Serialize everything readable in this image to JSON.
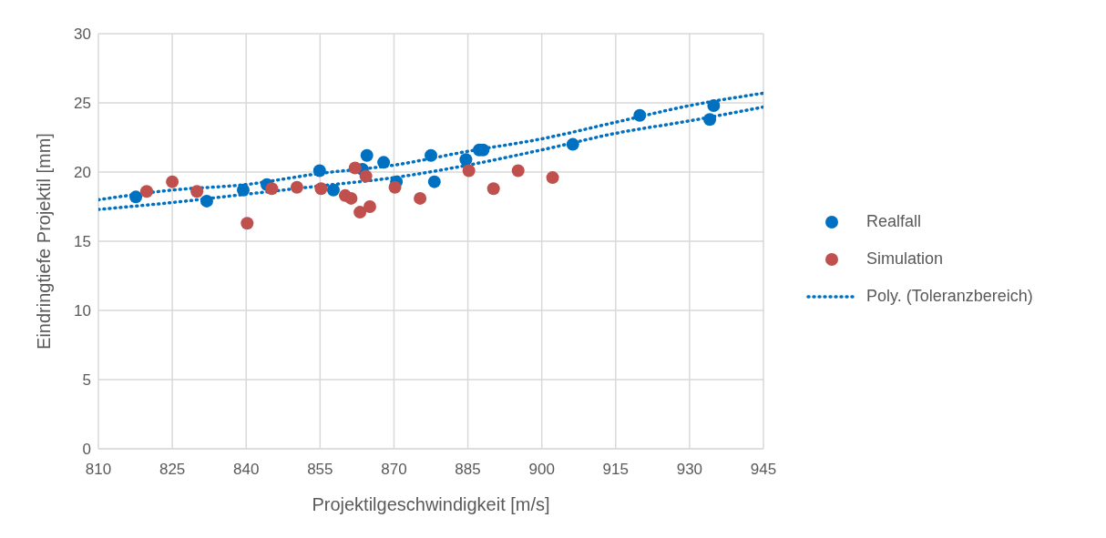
{
  "chart_data": {
    "type": "scatter",
    "xlabel": "Projektilgeschwindigkeit [m/s]",
    "ylabel": "Eindringtiefe Projektil [mm]",
    "xlim": [
      810,
      945
    ],
    "xticks": [
      810,
      825,
      840,
      855,
      870,
      885,
      900,
      915,
      930,
      945
    ],
    "ylim": [
      0,
      30
    ],
    "yticks": [
      0,
      5,
      10,
      15,
      20,
      25,
      30
    ],
    "grid": true,
    "legend": "right",
    "marker": "circle",
    "series": [
      {
        "name": "Realfall",
        "color": "#0070c0",
        "x": [
          817.6,
          832.0,
          839.4,
          844.2,
          854.9,
          857.7,
          863.6,
          864.5,
          867.9,
          870.5,
          877.5,
          878.2,
          884.6,
          887.3,
          888.1,
          906.3,
          919.9,
          934.1,
          934.9
        ],
        "values": [
          18.2,
          17.9,
          18.7,
          19.1,
          20.1,
          18.7,
          20.2,
          21.2,
          20.7,
          19.3,
          21.2,
          19.3,
          20.9,
          21.6,
          21.6,
          22.0,
          24.1,
          23.8,
          24.8
        ]
      },
      {
        "name": "Simulation",
        "color": "#c0504d",
        "x": [
          819.8,
          825.0,
          830.0,
          840.2,
          845.2,
          850.3,
          855.2,
          860.1,
          861.3,
          862.1,
          863.1,
          864.3,
          865.1,
          870.2,
          875.3,
          885.2,
          890.2,
          895.2,
          902.2
        ],
        "values": [
          18.6,
          19.3,
          18.6,
          16.3,
          18.8,
          18.9,
          18.8,
          18.3,
          18.1,
          20.3,
          17.1,
          19.7,
          17.5,
          18.9,
          18.1,
          20.1,
          18.8,
          20.1,
          19.6
        ]
      },
      {
        "name": "Poly. (Toleranzbereich)",
        "type": "line",
        "marker": "none",
        "line_style": "dotted",
        "color": "#0070c0",
        "x": [
          810,
          825,
          840,
          855,
          870,
          885,
          900,
          915,
          930,
          945
        ],
        "values": [
          18.0,
          18.7,
          19.1,
          19.9,
          20.5,
          21.5,
          22.4,
          23.6,
          24.8,
          25.7
        ]
      },
      {
        "type": "line",
        "marker": "none",
        "line_style": "dotted",
        "color": "#0070c0",
        "x": [
          810,
          825,
          840,
          855,
          870,
          885,
          900,
          915,
          930,
          945
        ],
        "values": [
          17.3,
          17.8,
          18.4,
          19.0,
          19.6,
          20.5,
          21.6,
          22.8,
          23.7,
          24.7
        ]
      }
    ]
  }
}
